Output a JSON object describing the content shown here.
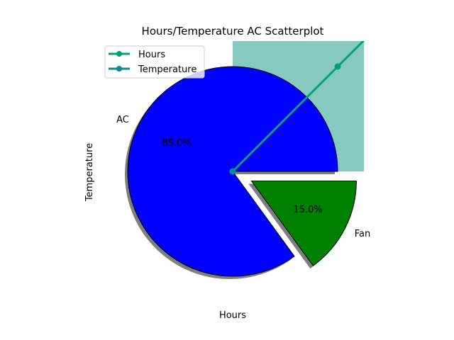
{
  "chart_data": {
    "type": "pie",
    "title": "Hours/Temperature AC Scatterplot",
    "xlabel": "Hours",
    "ylabel": "Temperature",
    "slices": [
      {
        "label": "AC",
        "value": 85.0,
        "pct_label": "85.0%",
        "color": "#0000ff",
        "explode": 0.0
      },
      {
        "label": "Fan",
        "value": 15.0,
        "pct_label": "15.0%",
        "color": "#008000",
        "explode": 0.2
      }
    ],
    "shadow": true,
    "overlay": {
      "area_color": "#3aa89a",
      "series": [
        {
          "name": "Hours",
          "color": "#03a077",
          "points": [
            [
              0,
              0
            ],
            [
              1,
              1
            ],
            [
              2,
              2
            ]
          ]
        },
        {
          "name": "Temperature",
          "color": "#0a8c8c",
          "points": [
            [
              0,
              0
            ]
          ]
        }
      ],
      "xlim": [
        0,
        1.25
      ],
      "ylim": [
        0,
        1.25
      ]
    },
    "legend": {
      "placement": "upper-left",
      "entries": [
        {
          "name": "Hours",
          "color": "#03a077"
        },
        {
          "name": "Temperature",
          "color": "#0a8c8c"
        }
      ]
    }
  }
}
